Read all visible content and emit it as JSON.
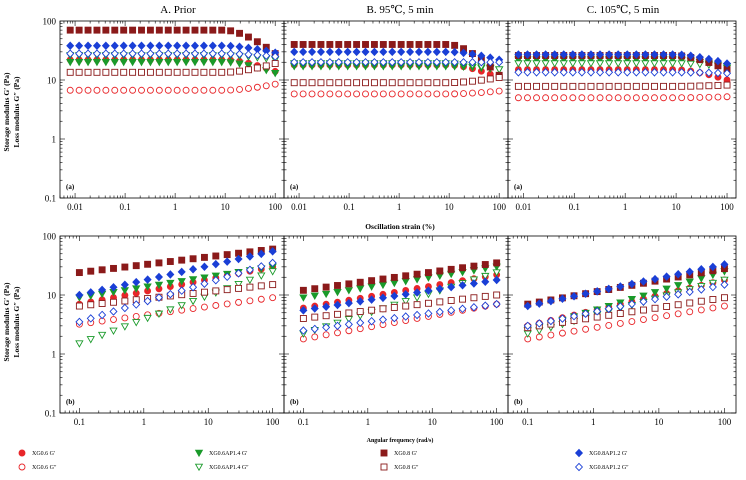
{
  "headers": {
    "a": "A. Prior",
    "b": "B. 95℃, 5 min",
    "c": "C. 105℃, 5 min"
  },
  "axes": {
    "ylabel_line1": "Storage modulus G′ (Pa)",
    "ylabel_line2": "Loss modulus G″ (Pa)",
    "top_xlabel": "Oscillation strain (%)",
    "bottom_xlabel": "Angular frequency (rad/s)",
    "y_ticks": [
      "100",
      "10",
      "1",
      "0.1"
    ],
    "top_x_ticks": [
      "0.01",
      "0.1",
      "1",
      "10",
      "100"
    ],
    "bottom_x_ticks": [
      "0.1",
      "1",
      "10",
      "100"
    ],
    "top_tag": "(a)",
    "bottom_tag": "(b)"
  },
  "colors": {
    "red": "#e8262a",
    "green": "#1a9a2a",
    "maroon": "#8b1a1a",
    "blue": "#1a3fd6"
  },
  "legend": [
    {
      "label": "XG0.6 G′",
      "marker": "circle",
      "filled": true,
      "color": "red"
    },
    {
      "label": "XG0.6 G″",
      "marker": "circle",
      "filled": false,
      "color": "red"
    },
    {
      "label": "XG0.6AP1.4 G′",
      "marker": "tri-down",
      "filled": true,
      "color": "green"
    },
    {
      "label": "XG0.6AP1.4 G″",
      "marker": "tri-down",
      "filled": false,
      "color": "green"
    },
    {
      "label": "XG0.8 G′",
      "marker": "square",
      "filled": true,
      "color": "maroon"
    },
    {
      "label": "XG0.8 G″",
      "marker": "square",
      "filled": false,
      "color": "maroon"
    },
    {
      "label": "XG0.8AP1.2 G′",
      "marker": "diamond",
      "filled": true,
      "color": "blue"
    },
    {
      "label": "XG0.8AP1.2 G″",
      "marker": "diamond",
      "filled": false,
      "color": "blue"
    }
  ],
  "chart_data": [
    {
      "id": "A-a",
      "type": "scatter",
      "title": "A. Prior",
      "xlabel": "Oscillation strain (%)",
      "ylabel": "Storage modulus G′ (Pa) / Loss modulus G″ (Pa)",
      "x_scale": "log",
      "y_scale": "log",
      "xlim": [
        0.005,
        150
      ],
      "ylim": [
        0.1,
        100
      ],
      "x_from": 0.008,
      "x_to": 100,
      "series": [
        {
          "name": "XG0.6 G′",
          "y_start": 22,
          "y_end": 14
        },
        {
          "name": "XG0.6 G″",
          "y_start": 6.7,
          "y_end": 8.5
        },
        {
          "name": "XG0.6AP1.4 G′",
          "y_start": 20,
          "y_end": 13
        },
        {
          "name": "XG0.6AP1.4 G″",
          "y_start": 26,
          "y_end": 22
        },
        {
          "name": "XG0.8 G′",
          "y_start": 70,
          "y_end": 28
        },
        {
          "name": "XG0.8 G″",
          "y_start": 13.5,
          "y_end": 19
        },
        {
          "name": "XG0.8AP1.2 G′",
          "y_start": 38,
          "y_end": 29
        },
        {
          "name": "XG0.8AP1.2 G″",
          "y_start": 28,
          "y_end": 25
        }
      ]
    },
    {
      "id": "B-a",
      "type": "scatter",
      "title": "B. 95℃, 5 min",
      "xlabel": "Oscillation strain (%)",
      "x_scale": "log",
      "y_scale": "log",
      "xlim": [
        0.005,
        150
      ],
      "ylim": [
        0.1,
        100
      ],
      "x_from": 0.008,
      "x_to": 100,
      "series": [
        {
          "name": "XG0.6 G′",
          "y_start": 18,
          "y_end": 11
        },
        {
          "name": "XG0.6 G″",
          "y_start": 5.8,
          "y_end": 6.5
        },
        {
          "name": "XG0.6AP1.4 G′",
          "y_start": 17,
          "y_end": 15
        },
        {
          "name": "XG0.6AP1.4 G″",
          "y_start": 19,
          "y_end": 15
        },
        {
          "name": "XG0.8 G′",
          "y_start": 40,
          "y_end": 12
        },
        {
          "name": "XG0.8 G″",
          "y_start": 9,
          "y_end": 11
        },
        {
          "name": "XG0.8AP1.2 G′",
          "y_start": 30,
          "y_end": 22
        },
        {
          "name": "XG0.8AP1.2 G″",
          "y_start": 20,
          "y_end": 20
        }
      ]
    },
    {
      "id": "C-a",
      "type": "scatter",
      "title": "C. 105℃, 5 min",
      "xlabel": "Oscillation strain (%)",
      "x_scale": "log",
      "y_scale": "log",
      "xlim": [
        0.005,
        150
      ],
      "ylim": [
        0.1,
        100
      ],
      "x_from": 0.008,
      "x_to": 100,
      "series": [
        {
          "name": "XG0.6 G′",
          "y_start": 15,
          "y_end": 10
        },
        {
          "name": "XG0.6 G″",
          "y_start": 5,
          "y_end": 5.2
        },
        {
          "name": "XG0.6AP1.4 G′",
          "y_start": 22,
          "y_end": 16
        },
        {
          "name": "XG0.6AP1.4 G″",
          "y_start": 19,
          "y_end": 17
        },
        {
          "name": "XG0.8 G′",
          "y_start": 26,
          "y_end": 15
        },
        {
          "name": "XG0.8 G″",
          "y_start": 7.8,
          "y_end": 8.2
        },
        {
          "name": "XG0.8AP1.2 G′",
          "y_start": 27,
          "y_end": 19
        },
        {
          "name": "XG0.8AP1.2 G″",
          "y_start": 13.5,
          "y_end": 13
        }
      ]
    },
    {
      "id": "A-b",
      "type": "scatter",
      "title": "A. Prior",
      "xlabel": "Angular frequency (rad/s)",
      "x_scale": "log",
      "y_scale": "log",
      "xlim": [
        0.05,
        150
      ],
      "ylim": [
        0.1,
        100
      ],
      "x_from": 0.1,
      "x_to": 100,
      "series": [
        {
          "name": "XG0.6 G′",
          "y_start": 7,
          "y_end": 30
        },
        {
          "name": "XG0.6 G″",
          "y_start": 3.2,
          "y_end": 9
        },
        {
          "name": "XG0.6AP1.4 G′",
          "y_start": 9,
          "y_end": 30
        },
        {
          "name": "XG0.6AP1.4 G″",
          "y_start": 1.5,
          "y_end": 25
        },
        {
          "name": "XG0.8 G′",
          "y_start": 24,
          "y_end": 60
        },
        {
          "name": "XG0.8 G″",
          "y_start": 6.5,
          "y_end": 15
        },
        {
          "name": "XG0.8AP1.2 G′",
          "y_start": 10,
          "y_end": 55
        },
        {
          "name": "XG0.8AP1.2 G″",
          "y_start": 3.5,
          "y_end": 35
        }
      ]
    },
    {
      "id": "B-b",
      "type": "scatter",
      "title": "B. 95℃, 5 min",
      "xlabel": "Angular frequency (rad/s)",
      "x_scale": "log",
      "y_scale": "log",
      "xlim": [
        0.05,
        150
      ],
      "ylim": [
        0.1,
        100
      ],
      "x_from": 0.1,
      "x_to": 100,
      "series": [
        {
          "name": "XG0.6 G′",
          "y_start": 6,
          "y_end": 22
        },
        {
          "name": "XG0.6 G″",
          "y_start": 1.8,
          "y_end": 7
        },
        {
          "name": "XG0.6AP1.4 G′",
          "y_start": 9,
          "y_end": 30
        },
        {
          "name": "XG0.6AP1.4 G″",
          "y_start": 2.2,
          "y_end": 24
        },
        {
          "name": "XG0.8 G′",
          "y_start": 12,
          "y_end": 35
        },
        {
          "name": "XG0.8 G″",
          "y_start": 4,
          "y_end": 10
        },
        {
          "name": "XG0.8AP1.2 G′",
          "y_start": 5.5,
          "y_end": 18
        },
        {
          "name": "XG0.8AP1.2 G″",
          "y_start": 2.5,
          "y_end": 7
        }
      ]
    },
    {
      "id": "C-b",
      "type": "scatter",
      "title": "C. 105℃, 5 min",
      "xlabel": "Angular frequency (rad/s)",
      "x_scale": "log",
      "y_scale": "log",
      "xlim": [
        0.05,
        150
      ],
      "ylim": [
        0.1,
        100
      ],
      "x_from": 0.1,
      "x_to": 100,
      "series": [
        {
          "name": "XG0.6 G′",
          "y_start": 3,
          "y_end": 18
        },
        {
          "name": "XG0.6 G″",
          "y_start": 1.8,
          "y_end": 6.5
        },
        {
          "name": "XG0.6AP1.4 G′",
          "y_start": 2.5,
          "y_end": 25
        },
        {
          "name": "XG0.6AP1.4 G″",
          "y_start": 2.2,
          "y_end": 18
        },
        {
          "name": "XG0.8 G′",
          "y_start": 7,
          "y_end": 28
        },
        {
          "name": "XG0.8 G″",
          "y_start": 2.8,
          "y_end": 9
        },
        {
          "name": "XG0.8AP1.2 G′",
          "y_start": 6.5,
          "y_end": 33
        },
        {
          "name": "XG0.8AP1.2 G″",
          "y_start": 3,
          "y_end": 15
        }
      ]
    }
  ]
}
